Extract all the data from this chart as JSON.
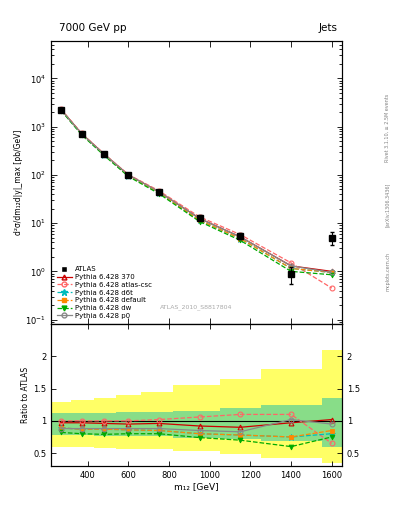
{
  "title_left": "7000 GeV pp",
  "title_right": "Jets",
  "watermark": "ATLAS_2010_S8817804",
  "rivet_label": "Rivet 3.1.10, ≥ 2.5M events",
  "arxiv_label": "[arXiv:1306.3436]",
  "mcplots_label": "mcplots.cern.ch",
  "ylabel_main": "d²σ/dm₁₂d|y|_max [pb/GeV]",
  "ylabel_ratio": "Ratio to ATLAS",
  "xlabel": "m₁₂ [GeV]",
  "xlim": [
    220,
    1650
  ],
  "ylim_main": [
    0.08,
    60000.0
  ],
  "ylim_ratio": [
    0.3,
    2.5
  ],
  "x_data": [
    270,
    370,
    480,
    600,
    750,
    950,
    1150,
    1400,
    1600
  ],
  "atlas_y": [
    2200,
    700,
    270,
    100,
    45,
    13,
    5.5,
    0.9,
    5.0
  ],
  "atlas_yerr_lo": [
    180,
    60,
    22,
    8,
    4,
    1.5,
    0.8,
    0.35,
    1.5
  ],
  "atlas_yerr_hi": [
    180,
    60,
    22,
    8,
    4,
    1.5,
    0.8,
    0.35,
    1.5
  ],
  "py370_y": [
    2250,
    720,
    272,
    100,
    45,
    12.5,
    5.2,
    1.3,
    1.0
  ],
  "py_atlascsc_y": [
    2280,
    730,
    275,
    102,
    47,
    13.5,
    5.8,
    1.5,
    0.45
  ],
  "py_d6t_y": [
    2200,
    700,
    265,
    97,
    43,
    11.5,
    4.8,
    1.15,
    0.95
  ],
  "py_default_y": [
    2210,
    705,
    266,
    97,
    43,
    11.5,
    4.8,
    1.15,
    0.95
  ],
  "py_dw_y": [
    2150,
    680,
    255,
    93,
    41,
    10.8,
    4.4,
    1.0,
    0.85
  ],
  "py_p0_y": [
    2230,
    715,
    270,
    100,
    45,
    12.5,
    5.2,
    1.3,
    0.95
  ],
  "ratio_py370": [
    0.97,
    0.97,
    0.96,
    0.95,
    0.96,
    0.92,
    0.9,
    0.97,
    1.02
  ],
  "ratio_atlascsc": [
    1.0,
    1.0,
    1.0,
    1.0,
    1.02,
    1.06,
    1.1,
    1.1,
    0.65
  ],
  "ratio_d6t": [
    0.89,
    0.87,
    0.87,
    0.86,
    0.85,
    0.8,
    0.78,
    0.75,
    0.8
  ],
  "ratio_default": [
    0.89,
    0.87,
    0.87,
    0.86,
    0.85,
    0.8,
    0.78,
    0.75,
    0.85
  ],
  "ratio_dw": [
    0.82,
    0.8,
    0.79,
    0.8,
    0.8,
    0.74,
    0.7,
    0.6,
    0.75
  ],
  "ratio_p0": [
    0.88,
    0.88,
    0.88,
    0.88,
    0.88,
    0.85,
    0.83,
    1.02,
    0.95
  ],
  "band_edges": [
    220,
    320,
    430,
    540,
    660,
    820,
    1050,
    1250,
    1550,
    1650
  ],
  "band_green_lo": [
    0.78,
    0.78,
    0.77,
    0.77,
    0.76,
    0.74,
    0.72,
    0.68,
    0.6
  ],
  "band_green_hi": [
    1.12,
    1.12,
    1.12,
    1.13,
    1.14,
    1.16,
    1.2,
    1.25,
    1.35
  ],
  "band_yellow_lo": [
    0.6,
    0.6,
    0.58,
    0.57,
    0.56,
    0.53,
    0.48,
    0.42,
    0.35
  ],
  "band_yellow_hi": [
    1.3,
    1.32,
    1.35,
    1.4,
    1.45,
    1.55,
    1.65,
    1.8,
    2.1
  ],
  "color_atlas": "#000000",
  "color_370": "#cc0000",
  "color_atlascsc": "#ff6666",
  "color_d6t": "#00bbbb",
  "color_default": "#ff8800",
  "color_dw": "#00aa00",
  "color_p0": "#888888"
}
